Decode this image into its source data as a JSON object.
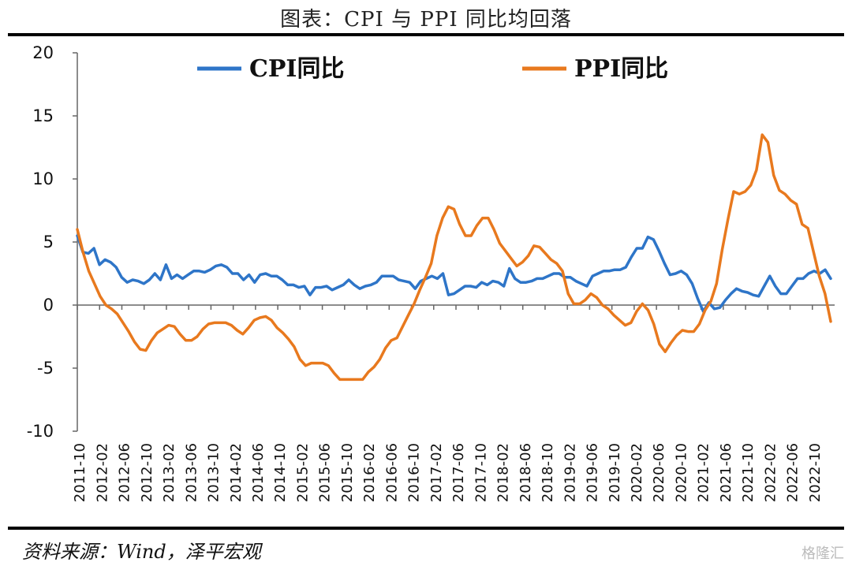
{
  "title": "图表：CPI 与 PPI 同比均回落",
  "source": "资料来源：Wind，泽平宏观",
  "watermark": "格隆汇",
  "chart_data": {
    "type": "line",
    "ylim": [
      -10,
      20
    ],
    "yticks": [
      "20",
      "15",
      "10",
      "5",
      "0",
      "-5",
      "-10"
    ],
    "x_tick_labels": [
      "2011-10",
      "2012-02",
      "2012-06",
      "2012-10",
      "2013-02",
      "2013-06",
      "2013-10",
      "2014-02",
      "2014-06",
      "2014-10",
      "2015-02",
      "2015-06",
      "2015-10",
      "2016-02",
      "2016-06",
      "2016-10",
      "2017-02",
      "2017-06",
      "2017-10",
      "2018-02",
      "2018-06",
      "2018-10",
      "2019-02",
      "2019-06",
      "2019-10",
      "2020-02",
      "2020-06",
      "2020-10",
      "2021-02",
      "2021-06",
      "2021-10",
      "2022-02",
      "2022-06",
      "2022-10"
    ],
    "series": [
      {
        "name": "CPI同比",
        "color": "#2E75C8",
        "values": [
          5.5,
          4.2,
          4.1,
          4.5,
          3.2,
          3.6,
          3.4,
          3.0,
          2.2,
          1.8,
          2.0,
          1.9,
          1.7,
          2.0,
          2.5,
          2.0,
          3.2,
          2.1,
          2.4,
          2.1,
          2.4,
          2.7,
          2.7,
          2.6,
          2.8,
          3.1,
          3.2,
          3.0,
          2.5,
          2.5,
          2.0,
          2.4,
          1.8,
          2.4,
          2.5,
          2.3,
          2.3,
          2.0,
          1.6,
          1.6,
          1.4,
          1.5,
          0.8,
          1.4,
          1.4,
          1.5,
          1.2,
          1.4,
          1.6,
          2.0,
          1.6,
          1.3,
          1.5,
          1.6,
          1.8,
          2.3,
          2.3,
          2.3,
          2.0,
          1.9,
          1.8,
          1.3,
          1.9,
          2.1,
          2.3,
          2.1,
          2.5,
          0.8,
          0.9,
          1.2,
          1.5,
          1.5,
          1.4,
          1.8,
          1.6,
          1.9,
          1.8,
          1.5,
          2.9,
          2.1,
          1.8,
          1.8,
          1.9,
          2.1,
          2.1,
          2.3,
          2.5,
          2.5,
          2.2,
          2.2,
          1.9,
          1.7,
          1.5,
          2.3,
          2.5,
          2.7,
          2.7,
          2.8,
          2.8,
          3.0,
          3.8,
          4.5,
          4.5,
          5.4,
          5.2,
          4.3,
          3.3,
          2.4,
          2.5,
          2.7,
          2.4,
          1.7,
          0.5,
          -0.5,
          0.2,
          -0.3,
          -0.2,
          0.4,
          0.9,
          1.3,
          1.1,
          1.0,
          0.8,
          0.7,
          1.5,
          2.3,
          1.5,
          0.9,
          0.9,
          1.5,
          2.1,
          2.1,
          2.5,
          2.7,
          2.5,
          2.8,
          2.1
        ]
      },
      {
        "name": "PPI同比",
        "color": "#E8791E",
        "values": [
          6.0,
          4.2,
          2.7,
          1.7,
          0.7,
          0.0,
          -0.3,
          -0.7,
          -1.4,
          -2.1,
          -2.9,
          -3.5,
          -3.6,
          -2.8,
          -2.2,
          -1.9,
          -1.6,
          -1.7,
          -2.3,
          -2.8,
          -2.8,
          -2.5,
          -1.9,
          -1.5,
          -1.4,
          -1.4,
          -1.4,
          -1.6,
          -2.0,
          -2.3,
          -1.8,
          -1.2,
          -1.0,
          -0.9,
          -1.2,
          -1.8,
          -2.2,
          -2.7,
          -3.3,
          -4.3,
          -4.8,
          -4.6,
          -4.6,
          -4.6,
          -4.8,
          -5.4,
          -5.9,
          -5.9,
          -5.9,
          -5.9,
          -5.9,
          -5.3,
          -4.9,
          -4.3,
          -3.4,
          -2.8,
          -2.6,
          -1.7,
          -0.8,
          0.1,
          1.2,
          2.2,
          3.3,
          5.5,
          6.9,
          7.8,
          7.6,
          6.4,
          5.5,
          5.5,
          6.3,
          6.9,
          6.9,
          6.0,
          4.9,
          4.3,
          3.7,
          3.1,
          3.4,
          3.9,
          4.7,
          4.6,
          4.1,
          3.6,
          3.3,
          2.7,
          0.9,
          0.1,
          0.1,
          0.4,
          0.9,
          0.6,
          0.0,
          -0.3,
          -0.8,
          -1.2,
          -1.6,
          -1.4,
          -0.5,
          0.1,
          -0.4,
          -1.5,
          -3.1,
          -3.7,
          -3.0,
          -2.4,
          -2.0,
          -2.1,
          -2.1,
          -1.5,
          -0.4,
          0.3,
          1.7,
          4.4,
          6.8,
          9.0,
          8.8,
          9.0,
          9.5,
          10.7,
          13.5,
          12.9,
          10.3,
          9.1,
          8.8,
          8.3,
          8.0,
          6.4,
          6.1,
          4.2,
          2.3,
          0.9,
          -1.3
        ]
      }
    ]
  }
}
